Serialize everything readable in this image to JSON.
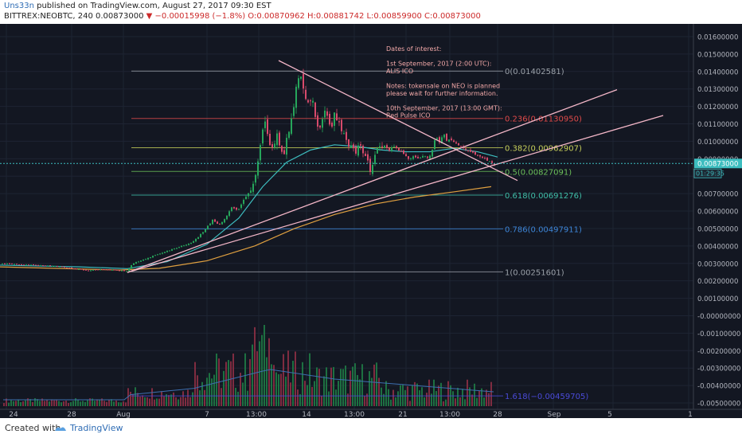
{
  "header": {
    "author": "Uns33n",
    "published": "published on TradingView.com, August 27, 2017 09:30 EST",
    "symbol": "BITTREX:NEOBTC, 240",
    "last": "0.00873000",
    "change": "▼ −0.00015998 (−1.8%)",
    "ohlc": "O:0.00870962 H:0.00881742 L:0.00859900 C:0.00873000"
  },
  "footer": {
    "created": "Created with",
    "brand": "TradingView"
  },
  "colors": {
    "background": "#131722",
    "up": "#26a65b",
    "down": "#d84a6b",
    "annotation": "#f2a8a8",
    "trendline": "#f4b7c8",
    "ema_short": "#3dbdbf",
    "ema_long": "#e0a040"
  },
  "chart_data": {
    "type": "candlestick",
    "symbol": "BITTREX:NEOBTC",
    "interval": "240",
    "x_tick_labels": [
      "24",
      "28",
      "Aug",
      "7",
      "13:00",
      "14",
      "13:00",
      "21",
      "13:00",
      "28",
      "Sep",
      "5",
      "1"
    ],
    "y_tick_labels": [
      "0.01600000",
      "0.01500000",
      "0.01400000",
      "0.01300000",
      "0.01200000",
      "0.01100000",
      "0.01000000",
      "0.00900000",
      "0.00700000",
      "0.00600000",
      "0.00500000",
      "0.00400000",
      "0.00300000",
      "0.00200000",
      "0.00100000",
      "-0.00000000",
      "-0.00100000",
      "-0.00200000",
      "-0.00300000",
      "-0.00400000",
      "-0.00500000"
    ],
    "ylim": [
      -0.0056,
      0.0172
    ],
    "last_price_label": "0.00873000",
    "countdown": "01:29:35",
    "fib_levels": [
      {
        "ratio": "0",
        "value": 0.01402581,
        "label": "0(0.01402581)",
        "color": "#9aa0a8"
      },
      {
        "ratio": "0.236",
        "value": 0.0113095,
        "label": "0.236(0.01130950)",
        "color": "#e04a4a"
      },
      {
        "ratio": "0.382",
        "value": 0.00962907,
        "label": "0.382(0.00962907)",
        "color": "#c8d05a"
      },
      {
        "ratio": "0.5",
        "value": 0.00827091,
        "label": "0.5(0.00827091)",
        "color": "#6cc05a"
      },
      {
        "ratio": "0.618",
        "value": 0.00691276,
        "label": "0.618(0.00691276)",
        "color": "#3fbfa8"
      },
      {
        "ratio": "0.786",
        "value": 0.00497911,
        "label": "0.786(0.00497911)",
        "color": "#3d86d8"
      },
      {
        "ratio": "1",
        "value": 0.00251601,
        "label": "1(0.00251601)",
        "color": "#9aa0a8"
      },
      {
        "ratio": "1.618",
        "value": -0.00459705,
        "label": "1.618(−0.00459705)",
        "color": "#4a4ad8"
      }
    ],
    "annotation": {
      "lines": [
        "Dates of interest:",
        "",
        "1st September, 2017 (2:00 UTC):",
        "ALIS ICO",
        "",
        "Notes: tokensale on NEO is planned",
        "please wait for further information.",
        "",
        "10th September, 2017 (13:00 GMT):",
        "Red Pulse ICO"
      ]
    },
    "price_path": [
      [
        0,
        0.003
      ],
      [
        20,
        0.00295
      ],
      [
        45,
        0.0029
      ],
      [
        70,
        0.00285
      ],
      [
        90,
        0.0027
      ],
      [
        110,
        0.0026
      ],
      [
        130,
        0.00265
      ],
      [
        148,
        0.0026
      ],
      [
        158,
        0.00255
      ],
      [
        166,
        0.003
      ],
      [
        178,
        0.0032
      ],
      [
        190,
        0.0034
      ],
      [
        202,
        0.0036
      ],
      [
        215,
        0.0038
      ],
      [
        228,
        0.004
      ],
      [
        240,
        0.0042
      ],
      [
        250,
        0.0046
      ],
      [
        258,
        0.005
      ],
      [
        266,
        0.0055
      ],
      [
        274,
        0.0052
      ],
      [
        282,
        0.0056
      ],
      [
        290,
        0.0062
      ],
      [
        298,
        0.006
      ],
      [
        305,
        0.0066
      ],
      [
        311,
        0.007
      ],
      [
        317,
        0.0075
      ],
      [
        322,
        0.0085
      ],
      [
        327,
        0.01
      ],
      [
        331,
        0.0112
      ],
      [
        335,
        0.0104
      ],
      [
        339,
        0.0095
      ],
      [
        343,
        0.0098
      ],
      [
        347,
        0.0104
      ],
      [
        351,
        0.0096
      ],
      [
        355,
        0.009
      ],
      [
        359,
        0.0102
      ],
      [
        363,
        0.0108
      ],
      [
        367,
        0.0116
      ],
      [
        371,
        0.0132
      ],
      [
        375,
        0.0138
      ],
      [
        379,
        0.0133
      ],
      [
        383,
        0.0125
      ],
      [
        387,
        0.012
      ],
      [
        391,
        0.0128
      ],
      [
        395,
        0.0113
      ],
      [
        399,
        0.0106
      ],
      [
        403,
        0.011
      ],
      [
        407,
        0.0118
      ],
      [
        411,
        0.0112
      ],
      [
        415,
        0.0105
      ],
      [
        419,
        0.0117
      ],
      [
        423,
        0.0111
      ],
      [
        427,
        0.0108
      ],
      [
        431,
        0.0104
      ],
      [
        436,
        0.0098
      ],
      [
        441,
        0.0096
      ],
      [
        446,
        0.0094
      ],
      [
        451,
        0.0099
      ],
      [
        456,
        0.0092
      ],
      [
        461,
        0.0088
      ],
      [
        465,
        0.0082
      ],
      [
        469,
        0.009
      ],
      [
        473,
        0.0096
      ],
      [
        478,
        0.0098
      ],
      [
        483,
        0.0097
      ],
      [
        488,
        0.0095
      ],
      [
        494,
        0.0097
      ],
      [
        500,
        0.0095
      ],
      [
        506,
        0.0093
      ],
      [
        512,
        0.009
      ],
      [
        518,
        0.0091
      ],
      [
        524,
        0.009
      ],
      [
        530,
        0.0092
      ],
      [
        536,
        0.0091
      ],
      [
        541,
        0.0093
      ],
      [
        546,
        0.0102
      ],
      [
        551,
        0.01
      ],
      [
        556,
        0.0104
      ],
      [
        561,
        0.01
      ],
      [
        566,
        0.0101
      ],
      [
        571,
        0.0099
      ],
      [
        576,
        0.0098
      ],
      [
        582,
        0.0096
      ],
      [
        588,
        0.0094
      ],
      [
        594,
        0.0093
      ],
      [
        600,
        0.0092
      ],
      [
        606,
        0.009
      ],
      [
        612,
        0.0089
      ],
      [
        617,
        0.0088
      ],
      [
        620,
        0.0087
      ]
    ],
    "ema_short_path": [
      [
        0,
        0.0029
      ],
      [
        100,
        0.0028
      ],
      [
        160,
        0.0027
      ],
      [
        210,
        0.0031
      ],
      [
        260,
        0.0041
      ],
      [
        300,
        0.0056
      ],
      [
        330,
        0.0074
      ],
      [
        360,
        0.0088
      ],
      [
        390,
        0.0095
      ],
      [
        420,
        0.0098
      ],
      [
        450,
        0.0097
      ],
      [
        480,
        0.0095
      ],
      [
        510,
        0.0094
      ],
      [
        540,
        0.0094
      ],
      [
        570,
        0.0096
      ],
      [
        600,
        0.0094
      ],
      [
        625,
        0.0091
      ]
    ],
    "ema_long_path": [
      [
        0,
        0.0028
      ],
      [
        150,
        0.00262
      ],
      [
        200,
        0.00272
      ],
      [
        260,
        0.00315
      ],
      [
        320,
        0.004
      ],
      [
        370,
        0.005
      ],
      [
        420,
        0.0058
      ],
      [
        470,
        0.0064
      ],
      [
        520,
        0.0068
      ],
      [
        570,
        0.0071
      ],
      [
        617,
        0.0074
      ]
    ],
    "trendlines": [
      {
        "from": [
          160,
          0.00248
        ],
        "to": [
          833,
          0.01148
        ]
      },
      {
        "from": [
          160,
          0.00248
        ],
        "to": [
          775,
          0.01296
        ]
      },
      {
        "from": [
          350,
          0.01463
        ],
        "to": [
          650,
          0.00775
        ]
      }
    ]
  }
}
